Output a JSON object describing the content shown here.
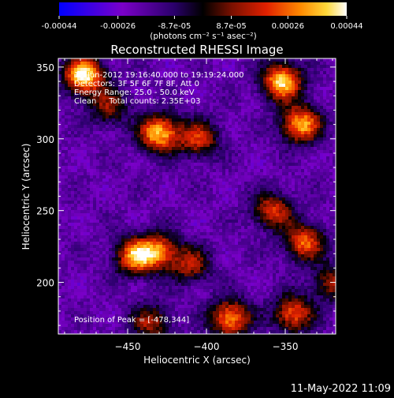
{
  "colorbar": {
    "tick_labels": [
      "-0.00044",
      "-0.00026",
      "-8.7e-05",
      "8.7e-05",
      "0.00026",
      "0.00044"
    ],
    "tick_values": [
      -0.00044,
      -0.00026,
      -8.7e-05,
      8.7e-05,
      0.00026,
      0.00044
    ],
    "min": -0.00044,
    "max": 0.00044,
    "units": "(photons cm⁻² s⁻¹ asec⁻²)",
    "colors": [
      "#0000ff",
      "#7a00c8",
      "#2a006a",
      "#000000",
      "#7a1000",
      "#e02000",
      "#ff8a00",
      "#ffd83a",
      "#ffffff"
    ]
  },
  "chart_data": {
    "type": "heatmap",
    "title": "Reconstructed RHESSI Image",
    "xlabel": "Heliocentric X (arcsec)",
    "ylabel": "Heliocentric Y (arcsec)",
    "xlim": [
      -494,
      -318
    ],
    "ylim": [
      164,
      356
    ],
    "x_ticks": [
      -450,
      -400,
      -350
    ],
    "x_tick_labels": [
      "−450",
      "−400",
      "−350"
    ],
    "y_ticks": [
      200,
      250,
      300,
      350
    ],
    "y_tick_labels": [
      "200",
      "250",
      "300",
      "350"
    ],
    "info_lines": [
      "12-Jun-2012 19:16:40.000 to 19:19:24.000",
      "Detectors: 3F 5F 6F 7F 8F, Att 0",
      "Energy Range: 25.0 - 50.0 keV",
      "Clean     Total counts: 2.35E+03"
    ],
    "peak_annotation": "Position of Peak = [-478,344]",
    "bright_regions": [
      {
        "x": -478,
        "y": 344,
        "intensity": 1.0
      },
      {
        "x": -462,
        "y": 322,
        "intensity": 0.45
      },
      {
        "x": -430,
        "y": 304,
        "intensity": 0.9
      },
      {
        "x": -352,
        "y": 340,
        "intensity": 0.95
      },
      {
        "x": -340,
        "y": 310,
        "intensity": 0.85
      },
      {
        "x": -405,
        "y": 300,
        "intensity": 0.6
      },
      {
        "x": -445,
        "y": 218,
        "intensity": 0.8
      },
      {
        "x": -430,
        "y": 222,
        "intensity": 0.65
      },
      {
        "x": -410,
        "y": 212,
        "intensity": 0.5
      },
      {
        "x": -358,
        "y": 250,
        "intensity": 0.6
      },
      {
        "x": -338,
        "y": 228,
        "intensity": 0.7
      },
      {
        "x": -385,
        "y": 175,
        "intensity": 0.8
      },
      {
        "x": -345,
        "y": 178,
        "intensity": 0.7
      },
      {
        "x": -435,
        "y": 172,
        "intensity": 0.5
      },
      {
        "x": -320,
        "y": 200,
        "intensity": 0.5
      }
    ]
  },
  "timestamp": "11-May-2022 11:09"
}
